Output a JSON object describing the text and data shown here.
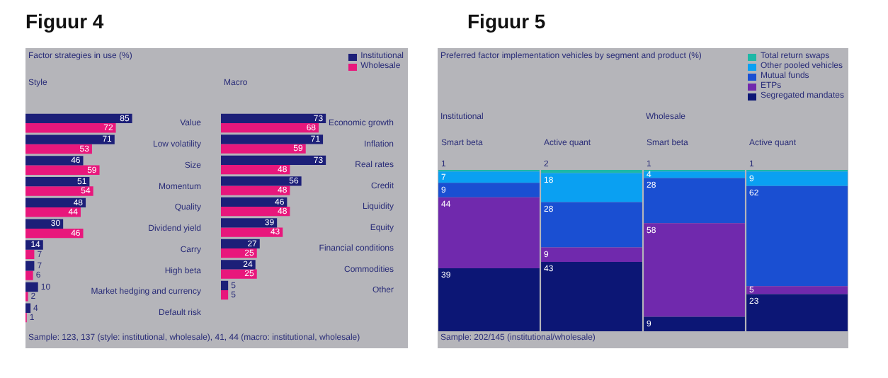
{
  "chart_data": [
    {
      "type": "bar",
      "title": "Figuur 4",
      "subtitle": "Factor strategies in use (%)",
      "ylabel": "Style",
      "orientation": "horizontal",
      "data_labels": true,
      "tick_labels": "y",
      "categories": [
        "Value",
        "Low volatility",
        "Size",
        "Momentum",
        "Quality",
        "Dividend yield",
        "Carry",
        "High beta",
        "Market hedging and currency",
        "Default risk"
      ],
      "series": [
        {
          "color": "#1c1f78",
          "values": [
            85,
            71,
            46,
            51,
            48,
            30,
            14,
            7,
            10,
            4
          ]
        },
        {
          "color": "#e8177c",
          "values": [
            72,
            53,
            59,
            54,
            44,
            46,
            7,
            6,
            2,
            1
          ]
        }
      ],
      "annotations": [
        "Sample: 123, 137 (style: institutional, wholesale), 41, 44 (macro: institutional, wholesale)"
      ]
    },
    {
      "type": "bar",
      "ylabel": "Macro",
      "orientation": "horizontal",
      "data_labels": true,
      "tick_labels": "y",
      "legend": "top right",
      "categories": [
        "Economic growth",
        "Inflation",
        "Real rates",
        "Credit",
        "Liquidity",
        "Equity",
        "Financial conditions",
        "Commodities",
        "Other"
      ],
      "series": [
        {
          "name": "Institutional",
          "color": "#1c1f78",
          "values": [
            73,
            71,
            73,
            56,
            46,
            39,
            27,
            24,
            5
          ]
        },
        {
          "name": "Wholesale",
          "color": "#e8177c",
          "values": [
            68,
            59,
            48,
            48,
            48,
            43,
            25,
            25,
            5
          ]
        }
      ]
    },
    {
      "type": "bar",
      "title": "Figuur 5",
      "subtitle": "Preferred factor implementation vehicles by segment and product (%)",
      "stacked": true,
      "data_labels": true,
      "tick_labels": "x",
      "legend": "top right",
      "categories": [
        "Smart beta",
        "Active quant",
        "Smart beta",
        "Active quant"
      ],
      "series": [
        {
          "name": "Segregated mandates",
          "color": "#0c1675",
          "values": [
            39,
            43,
            9,
            23
          ]
        },
        {
          "name": "ETPs",
          "color": "#7029ad",
          "values": [
            44,
            9,
            58,
            5
          ]
        },
        {
          "name": "Mutual funds",
          "color": "#1a4fd2",
          "values": [
            9,
            28,
            28,
            62
          ]
        },
        {
          "name": "Other pooled vehicles",
          "color": "#0aa0f2",
          "values": [
            7,
            18,
            4,
            9
          ]
        },
        {
          "name": "Total return swaps",
          "color": "#1db8a6",
          "values": [
            1,
            2,
            1,
            1
          ]
        }
      ],
      "annotations": [
        "Institutional",
        "Wholesale",
        "Sample: 202/145 (institutional/wholesale)"
      ]
    }
  ]
}
